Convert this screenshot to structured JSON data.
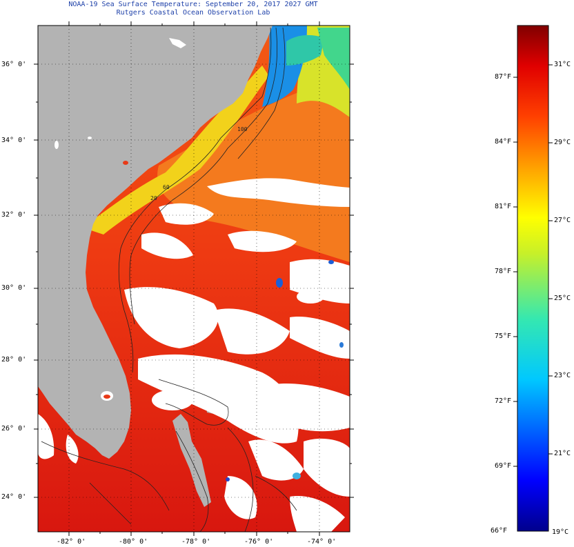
{
  "title": {
    "line1": "NOAA-19 Sea Surface Temperature:  September 20, 2017 2027 GMT",
    "line2": "Rutgers Coastal Ocean Observation Lab"
  },
  "map": {
    "lat_labels": [
      "36° 0'",
      "34° 0'",
      "32° 0'",
      "30° 0'",
      "28° 0'",
      "26° 0'",
      "24° 0'"
    ],
    "lon_labels": [
      "-82° 0'",
      "-80° 0'",
      "-78° 0'",
      "-76° 0'",
      "-74° 0'"
    ],
    "land_color": "#b3b3b3",
    "cloud_color": "#ffffff",
    "contour_labels": [
      "20",
      "60",
      "100"
    ]
  },
  "colorbar": {
    "fahrenheit_labels": [
      "87°F",
      "84°F",
      "81°F",
      "78°F",
      "75°F",
      "72°F",
      "69°F",
      "66°F"
    ],
    "celsius_labels": [
      "31°C",
      "29°C",
      "27°C",
      "25°C",
      "23°C",
      "21°C",
      "19°C"
    ],
    "range_f": [
      66,
      89.6
    ],
    "range_c": [
      19,
      32
    ]
  }
}
